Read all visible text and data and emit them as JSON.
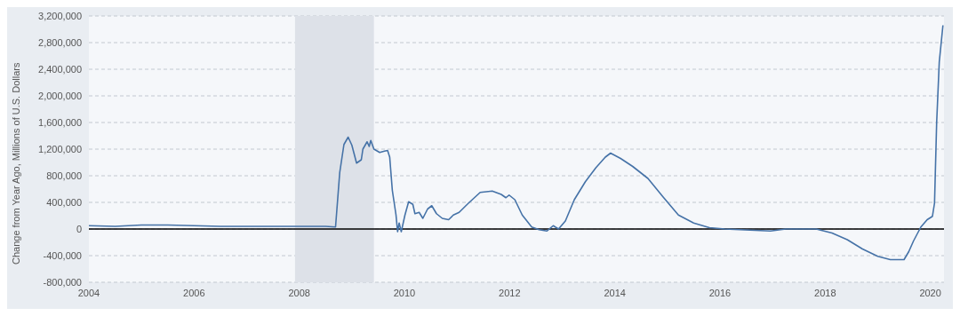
{
  "chart_data": {
    "type": "line",
    "ylabel": "Change from Year Ago, Millions of U.S. Dollars",
    "x": [
      2004.0,
      2004.5,
      2005.0,
      2005.5,
      2006.0,
      2006.5,
      2007.0,
      2007.5,
      2008.0,
      2008.5,
      2008.69,
      2008.77,
      2008.85,
      2008.93,
      2009.0,
      2009.09,
      2009.18,
      2009.21,
      2009.29,
      2009.33,
      2009.36,
      2009.42,
      2009.53,
      2009.62,
      2009.68,
      2009.72,
      2009.77,
      2009.84,
      2009.87,
      2009.9,
      2009.94,
      2010.01,
      2010.08,
      2010.16,
      2010.2,
      2010.28,
      2010.35,
      2010.44,
      2010.52,
      2010.61,
      2010.72,
      2010.84,
      2010.93,
      2011.04,
      2011.22,
      2011.44,
      2011.67,
      2011.84,
      2011.93,
      2011.99,
      2012.1,
      2012.24,
      2012.42,
      2012.56,
      2012.71,
      2012.83,
      2012.93,
      2013.06,
      2013.23,
      2013.44,
      2013.64,
      2013.82,
      2013.92,
      2014.11,
      2014.34,
      2014.63,
      2014.92,
      2015.21,
      2015.5,
      2015.8,
      2016.09,
      2016.67,
      2016.96,
      2017.25,
      2017.83,
      2018.13,
      2018.42,
      2018.71,
      2019.0,
      2019.24,
      2019.5,
      2019.59,
      2019.68,
      2019.82,
      2019.94,
      2020.04,
      2020.08,
      2020.12,
      2020.17,
      2020.24
    ],
    "series": [
      {
        "color": "#4572a7",
        "values": [
          50000,
          40000,
          60000,
          60000,
          50000,
          40000,
          40000,
          40000,
          40000,
          40000,
          30000,
          850000,
          1270000,
          1380000,
          1260000,
          990000,
          1040000,
          1200000,
          1310000,
          1240000,
          1330000,
          1200000,
          1150000,
          1170000,
          1180000,
          1080000,
          580000,
          210000,
          -40000,
          90000,
          -40000,
          210000,
          410000,
          370000,
          230000,
          250000,
          160000,
          300000,
          350000,
          230000,
          160000,
          140000,
          210000,
          250000,
          390000,
          550000,
          570000,
          520000,
          470000,
          510000,
          440000,
          210000,
          30000,
          -10000,
          -30000,
          50000,
          0,
          120000,
          440000,
          710000,
          920000,
          1080000,
          1140000,
          1060000,
          940000,
          760000,
          480000,
          210000,
          90000,
          20000,
          0,
          -20000,
          -30000,
          0,
          0,
          -60000,
          -160000,
          -300000,
          -410000,
          -460000,
          -460000,
          -340000,
          -180000,
          30000,
          140000,
          190000,
          390000,
          1590000,
          2510000,
          3060000
        ]
      }
    ],
    "xlim": [
      2004,
      2020.26
    ],
    "xticks": [
      2004,
      2006,
      2008,
      2010,
      2012,
      2014,
      2016,
      2018,
      2020
    ],
    "ylim": [
      -800000,
      3200000
    ],
    "yticks": [
      {
        "value": -800000,
        "label": "-800,000"
      },
      {
        "value": -400000,
        "label": "-400,000"
      },
      0,
      {
        "value": 400000,
        "label": "400,000"
      },
      {
        "value": 800000,
        "label": "800,000"
      },
      {
        "value": 1200000,
        "label": "1,200,000"
      },
      {
        "value": 1600000,
        "label": "1,600,000"
      },
      {
        "value": 2000000,
        "label": "2,000,000"
      },
      {
        "value": 2400000,
        "label": "2,400,000"
      },
      {
        "value": 2800000,
        "label": "2,800,000"
      },
      {
        "value": 3200000,
        "label": "3,200,000"
      }
    ],
    "grid": "y",
    "line_style": "solid",
    "marker": "none",
    "legend": false,
    "ref_lines": [
      {
        "axis": "y",
        "value": 0,
        "color": "#000000"
      }
    ],
    "bands": [
      {
        "axis": "x",
        "from": 2007.92,
        "to": 2009.42,
        "color": "#dde1e8"
      }
    ]
  }
}
